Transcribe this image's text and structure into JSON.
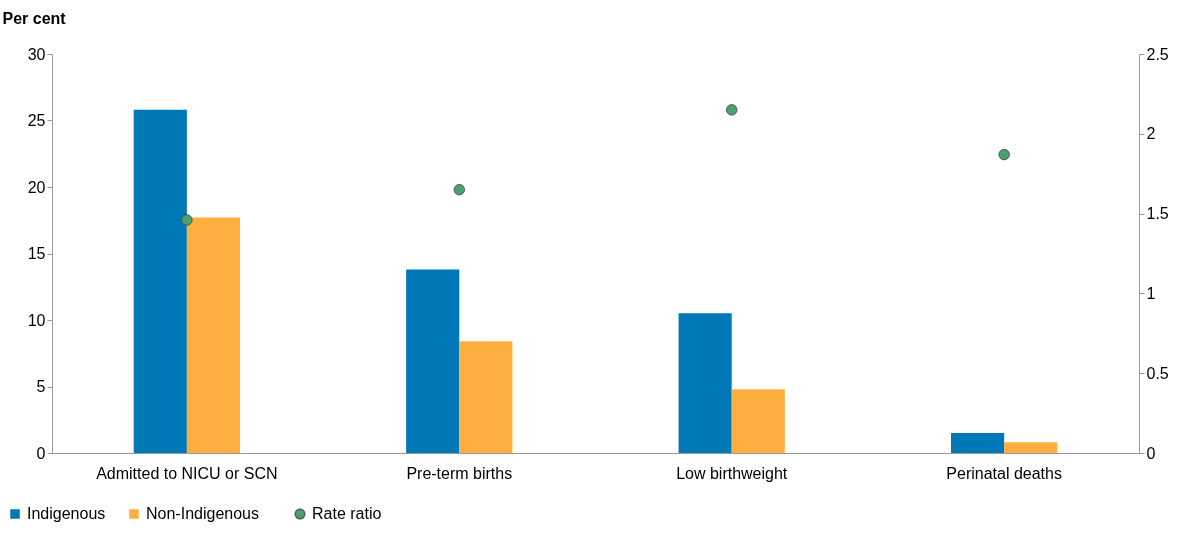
{
  "chart_data": {
    "type": "bar",
    "ylabel": "Per cent",
    "categories": [
      "Admitted to NICU or SCN",
      "Pre-term births",
      "Low birthweight",
      "Perinatal deaths"
    ],
    "series": [
      {
        "name": "Indigenous",
        "type": "bar",
        "color": "#0077b6",
        "values": [
          25.8,
          13.8,
          10.5,
          1.5
        ]
      },
      {
        "name": "Non-Indigenous",
        "type": "bar",
        "color": "#fcaf3f",
        "values": [
          17.7,
          8.4,
          4.8,
          0.8
        ]
      },
      {
        "name": "Rate ratio",
        "type": "scatter",
        "axis": "y2",
        "color": "#4aa06f",
        "marker": "circle",
        "values": [
          1.46,
          1.65,
          2.15,
          1.87
        ]
      }
    ],
    "ylim": [
      0,
      30
    ],
    "yticks": [
      0,
      5,
      10,
      15,
      20,
      25,
      30
    ],
    "y2lim": [
      0,
      2.5
    ],
    "y2ticks": [
      0,
      0.5,
      1,
      1.5,
      2,
      2.5
    ],
    "grid": false,
    "legend": "bottom left"
  }
}
